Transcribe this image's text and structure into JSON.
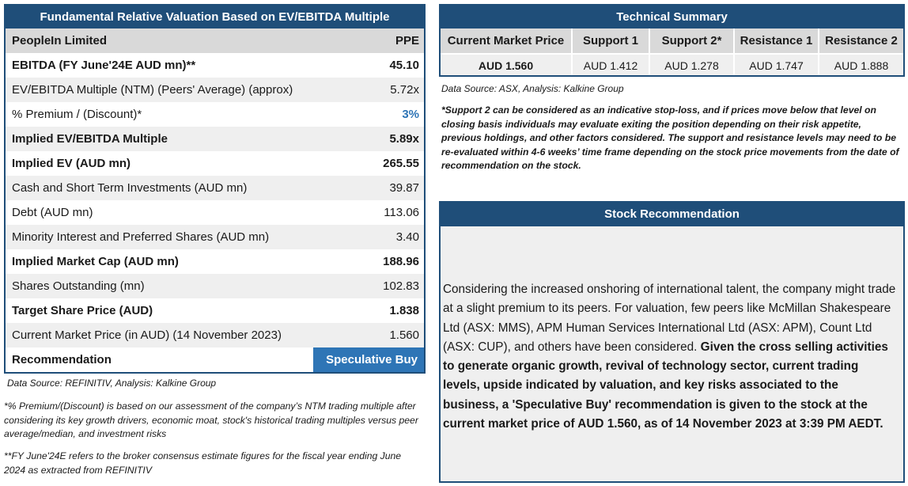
{
  "left_table": {
    "title": "Fundamental Relative Valuation Based on EV/EBITDA Multiple",
    "company": "PeopleIn Limited",
    "ticker": "PPE",
    "rows": [
      {
        "label": "EBITDA (FY June'24E AUD mn)**",
        "value": "45.10"
      },
      {
        "label": "EV/EBITDA Multiple (NTM)  (Peers' Average) (approx)",
        "value": "5.72x"
      },
      {
        "label": "% Premium / (Discount)*",
        "value": "3%"
      },
      {
        "label": "Implied EV/EBITDA Multiple",
        "value": "5.89x"
      },
      {
        "label": "Implied EV (AUD mn)",
        "value": "265.55"
      },
      {
        "label": "Cash and Short Term Investments (AUD mn)",
        "value": "39.87"
      },
      {
        "label": "Debt (AUD mn)",
        "value": "113.06"
      },
      {
        "label": "Minority Interest and Preferred Shares (AUD mn)",
        "value": "3.40"
      },
      {
        "label": "Implied Market Cap (AUD mn)",
        "value": "188.96"
      },
      {
        "label": "Shares Outstanding (mn)",
        "value": "102.83"
      },
      {
        "label": "Target Share Price (AUD)",
        "value": "1.838"
      },
      {
        "label": "Current Market Price (in AUD) (14 November 2023)",
        "value": "1.560"
      }
    ],
    "recommendation_label": "Recommendation",
    "recommendation_value": "Speculative Buy",
    "source": "Data Source: REFINITIV, Analysis: Kalkine Group",
    "note1": "*% Premium/(Discount) is based on our assessment of the company’s NTM trading multiple after considering its key growth drivers, economic moat, stock's historical trading multiples versus peer average/median, and investment risks",
    "note2": "**FY June'24E refers to the broker consensus estimate figures for the fiscal year ending June 2024  as extracted from REFINITIV"
  },
  "technical": {
    "title": "Technical Summary",
    "headers": [
      "Current Market Price",
      "Support 1",
      "Support 2*",
      "Resistance 1",
      "Resistance 2"
    ],
    "values": [
      "AUD 1.560",
      "AUD 1.412",
      "AUD 1.278",
      "AUD 1.747",
      "AUD 1.888"
    ],
    "source": "Data Source: ASX, Analysis: Kalkine Group",
    "note": "*Support 2 can be considered as an indicative stop-loss, and if prices move below that level on closing basis individuals may evaluate exiting the position depending on their risk appetite, previous holdings, and other factors considered. The support and resistance levels may need to be re-evaluated within 4-6 weeks’ time frame depending on the stock price movements from the date of recommendation on the stock."
  },
  "stock_rec": {
    "title": "Stock Recommendation",
    "text_normal": "Considering the increased onshoring of international talent, the company might trade at a slight premium to its peers. For valuation, few peers like McMillan Shakespeare Ltd (ASX: MMS), APM Human Services International Ltd (ASX: APM), Count Ltd (ASX: CUP), and others have been considered.",
    "text_bold": "Given the cross selling activities to generate organic growth, revival of technology sector, current trading levels, upside indicated by valuation, and key risks associated to the business, a 'Speculative Buy' recommendation is given to the stock at the current market price of AUD 1.560, as of 14 November 2023 at 3:39 PM AEDT."
  },
  "colors": {
    "navy": "#1f4e79",
    "blue": "#2e75b6",
    "gray_header": "#d9d9d9",
    "gray_row": "#efefef"
  }
}
